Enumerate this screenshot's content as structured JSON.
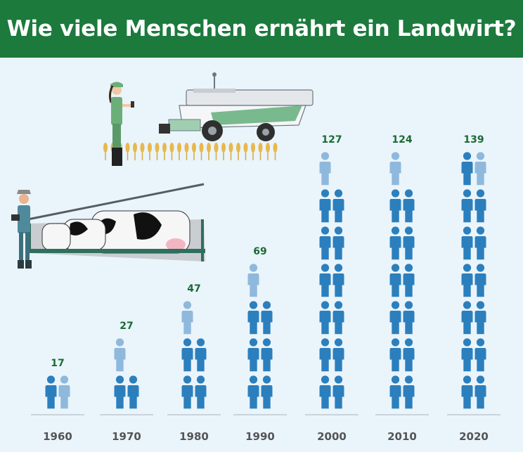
{
  "title": "Wie viele Menschen ernährt ein Landwirt?",
  "colors": {
    "header": "#1b7a3c",
    "background": "#eaf4fb",
    "person": "#2c7fbd",
    "person_partial": "#8fb9dc",
    "value_text": "#1b6b33",
    "year_text": "#555555"
  },
  "icons": [
    "farmer-with-tablet-icon",
    "combine-harvester-icon",
    "wheat-field-icon",
    "dairy-farmer-icon",
    "milking-parlor-cows-icon",
    "person-icon"
  ],
  "chart_data": {
    "type": "bar",
    "categories": [
      "1960",
      "1970",
      "1980",
      "1990",
      "2000",
      "2010",
      "2020"
    ],
    "values": [
      17,
      27,
      47,
      69,
      127,
      124,
      139
    ],
    "unit_per_icon": 10,
    "title": "Wie viele Menschen ernährt ein Landwirt?",
    "xlabel": "",
    "ylabel": "",
    "grid": false
  }
}
